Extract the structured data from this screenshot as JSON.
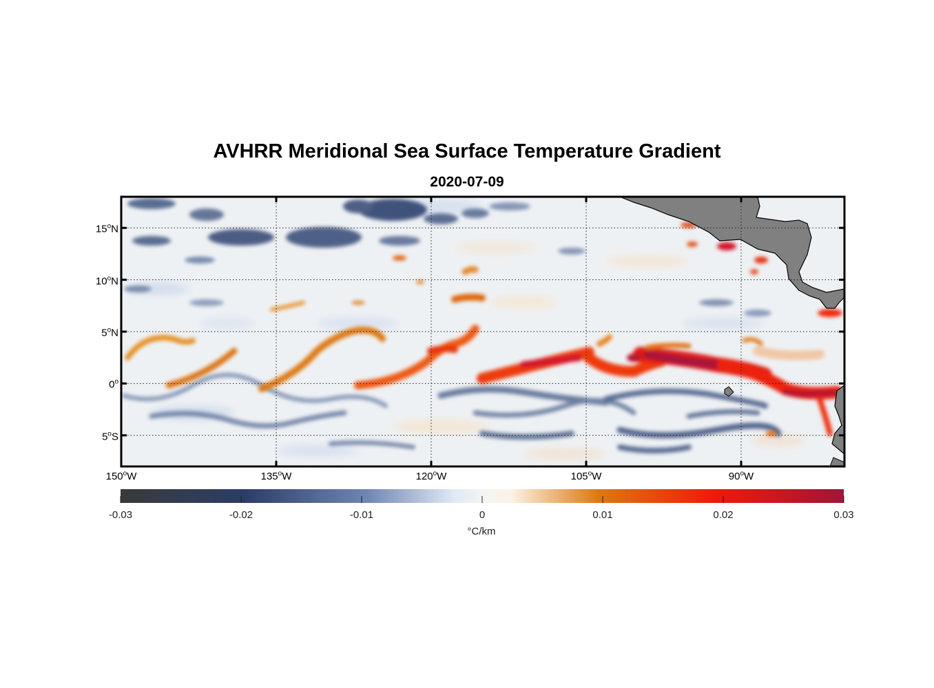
{
  "title": "AVHRR Meridional Sea Surface Temperature Gradient",
  "subtitle": "2020-07-09",
  "map": {
    "lon_range": [
      -150,
      -80
    ],
    "lat_range": [
      -8,
      18
    ],
    "grid": "dotted",
    "lat_ticks": [
      {
        "value": 15,
        "num": "15",
        "hemi": "N"
      },
      {
        "value": 10,
        "num": "10",
        "hemi": "N"
      },
      {
        "value": 5,
        "num": "5",
        "hemi": "N"
      },
      {
        "value": 0,
        "num": "0",
        "hemi": ""
      },
      {
        "value": -5,
        "num": "5",
        "hemi": "S"
      }
    ],
    "lon_ticks": [
      {
        "value": -150,
        "num": "150",
        "hemi": "W"
      },
      {
        "value": -135,
        "num": "135",
        "hemi": "W"
      },
      {
        "value": -120,
        "num": "120",
        "hemi": "W"
      },
      {
        "value": -105,
        "num": "105",
        "hemi": "W"
      },
      {
        "value": -90,
        "num": "90",
        "hemi": "W"
      }
    ],
    "land_color": "#808080"
  },
  "colorbar": {
    "range": [
      -0.03,
      0.03
    ],
    "ticks": [
      "-0.03",
      "-0.02",
      "-0.01",
      "0",
      "0.01",
      "0.02",
      "0.03"
    ],
    "tick_values": [
      -0.03,
      -0.02,
      -0.01,
      0,
      0.01,
      0.02,
      0.03
    ],
    "unit": "°C/km",
    "colormap": [
      "#3a3a3c",
      "#2b3d66",
      "#6f86b2",
      "#dfe8f4",
      "#fbf2e6",
      "#dd7a10",
      "#ee1b08",
      "#a01538"
    ]
  }
}
